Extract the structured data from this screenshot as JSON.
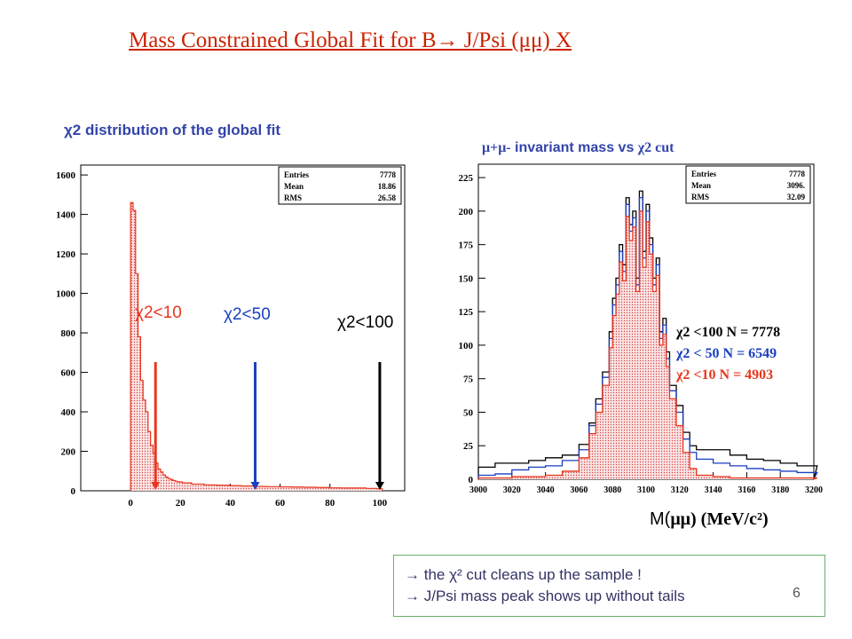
{
  "title": "Mass Constrained Global Fit for B→ J/Psi (μμ) X",
  "subtitle_left": "χ2 distribution of the global fit",
  "subtitle_right_prefix": "μ+μ-",
  "subtitle_right_mid": " invariant mass vs ",
  "subtitle_right_suffix": "χ2 cut",
  "cut_labels": {
    "c10": "χ2<10",
    "c50": "χ2<50",
    "c100": "χ2<100"
  },
  "legend": {
    "l100": "χ2  <100 N = 7778",
    "l50": "χ2  < 50  N = 6549",
    "l10": "χ2  <10   N = 4903"
  },
  "mass_label": {
    "m": "M(",
    "unit": "μμ) (MeV/c²)"
  },
  "notes": [
    "→  the χ² cut cleans up the sample !",
    "→  J/Psi mass peak shows up without tails"
  ],
  "page_number": "6",
  "colors": {
    "red": "#e8361c",
    "blue": "#1a3fbf",
    "black": "#000000",
    "fill": "#f7d0d0"
  },
  "chart_data": [
    {
      "type": "bar",
      "title": "χ2 distribution of the global fit",
      "x_range": [
        -20,
        110
      ],
      "ylim": [
        0,
        1650
      ],
      "x_ticks": [
        0,
        20,
        40,
        60,
        80,
        100
      ],
      "y_ticks": [
        0,
        200,
        400,
        600,
        800,
        1000,
        1200,
        1400,
        1600
      ],
      "bin_width": 1,
      "bin_centers": [
        0.5,
        1.5,
        2.5,
        3.5,
        4.5,
        5.5,
        6.5,
        7.5,
        8.5,
        9.5,
        10.5,
        11.5,
        12.5,
        13.5,
        14.5,
        15.5,
        16.5,
        17.5,
        18.5,
        19.5,
        22,
        27,
        32,
        37,
        42,
        47,
        52,
        57,
        62,
        67,
        72,
        77,
        82,
        87,
        92,
        97,
        100.5
      ],
      "values": [
        1460,
        1420,
        1100,
        780,
        560,
        460,
        400,
        300,
        230,
        190,
        140,
        110,
        95,
        80,
        70,
        62,
        57,
        52,
        48,
        45,
        40,
        34,
        30,
        28,
        26,
        24,
        22,
        21,
        20,
        19,
        18,
        17,
        15,
        14,
        14,
        12,
        10
      ],
      "stats": {
        "entries_label": "Entries",
        "entries": "7778",
        "mean_label": "Mean",
        "mean": "18.86",
        "rms_label": "RMS",
        "rms": "26.58"
      },
      "cuts": [
        10,
        50,
        100
      ]
    },
    {
      "type": "line",
      "title": "μ+μ- invariant mass vs χ2 cut",
      "xlabel": "M(μμ) (MeV/c²)",
      "x_range": [
        3000,
        3200
      ],
      "ylim": [
        0,
        235
      ],
      "x_ticks": [
        3000,
        3020,
        3040,
        3060,
        3080,
        3100,
        3120,
        3140,
        3160,
        3180,
        3200
      ],
      "y_ticks": [
        0,
        25,
        50,
        75,
        100,
        125,
        150,
        175,
        200,
        225
      ],
      "bin_width": 2,
      "bin_starts": [
        3000,
        3010,
        3020,
        3030,
        3040,
        3050,
        3060,
        3066,
        3070,
        3074,
        3078,
        3080,
        3082,
        3084,
        3086,
        3088,
        3090,
        3092,
        3094,
        3096,
        3098,
        3100,
        3102,
        3104,
        3106,
        3108,
        3110,
        3112,
        3114,
        3118,
        3122,
        3126,
        3130,
        3140,
        3150,
        3160,
        3170,
        3180,
        3190,
        3200
      ],
      "series": [
        {
          "name": "χ2  <100 N = 7778",
          "values": [
            9,
            12,
            12,
            14,
            16,
            18,
            26,
            42,
            60,
            80,
            110,
            135,
            150,
            175,
            160,
            210,
            190,
            200,
            150,
            215,
            170,
            205,
            180,
            150,
            165,
            110,
            120,
            95,
            70,
            55,
            35,
            25,
            22,
            22,
            18,
            15,
            14,
            12,
            10,
            10
          ]
        },
        {
          "name": "χ2  < 50  N = 6549",
          "values": [
            3,
            4,
            7,
            9,
            10,
            14,
            22,
            40,
            56,
            76,
            105,
            130,
            145,
            170,
            155,
            205,
            185,
            195,
            145,
            210,
            165,
            200,
            175,
            145,
            160,
            105,
            115,
            90,
            66,
            50,
            30,
            20,
            15,
            12,
            10,
            8,
            7,
            6,
            5,
            5
          ]
        },
        {
          "name": "χ2  <10   N = 4903",
          "values": [
            1,
            1,
            2,
            2,
            3,
            6,
            16,
            34,
            50,
            70,
            98,
            122,
            138,
            162,
            148,
            196,
            178,
            188,
            140,
            200,
            158,
            192,
            168,
            140,
            152,
            100,
            108,
            84,
            60,
            40,
            20,
            8,
            3,
            2,
            1,
            1,
            1,
            1,
            1,
            1
          ]
        }
      ],
      "stats": {
        "entries_label": "Entries",
        "entries": "7778",
        "mean_label": "Mean",
        "mean": "3096.",
        "rms_label": "RMS",
        "rms": "32.09"
      }
    }
  ]
}
